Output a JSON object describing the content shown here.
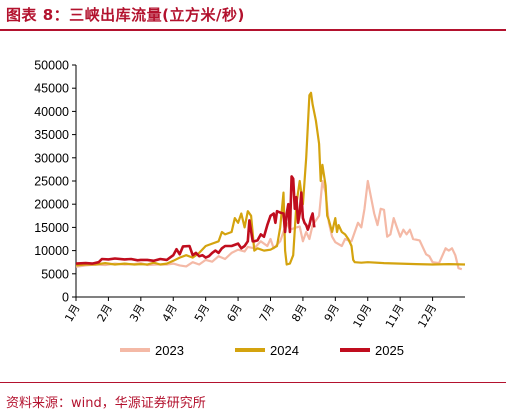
{
  "title": "图表 8：三峡出库流量(立方米/秒)",
  "source": "资料来源：wind，华源证券研究所",
  "colors": {
    "accent": "#b3122e",
    "s2023": "#f4b9a6",
    "s2024": "#d4a30e",
    "s2025": "#c00d1e"
  },
  "chart_data": {
    "type": "line",
    "title": "",
    "xlabel": "",
    "ylabel": "",
    "ylim": [
      0,
      50000
    ],
    "yticks": [
      "0",
      "5000",
      "10000",
      "15000",
      "20000",
      "25000",
      "30000",
      "35000",
      "40000",
      "45000",
      "50000"
    ],
    "xticks": [
      "1月",
      "2月",
      "3月",
      "4月",
      "5月",
      "6月",
      "7月",
      "8月",
      "9月",
      "10月",
      "11月",
      "12月"
    ],
    "grid": false,
    "legend": "bottom",
    "x_unit": "month (1.0 = 1月1日)",
    "series": [
      {
        "name": "2023",
        "points": [
          [
            1.0,
            6500
          ],
          [
            1.3,
            6800
          ],
          [
            1.6,
            7000
          ],
          [
            1.9,
            6900
          ],
          [
            2.2,
            7200
          ],
          [
            2.5,
            7000
          ],
          [
            2.8,
            7100
          ],
          [
            3.0,
            7300
          ],
          [
            3.2,
            6900
          ],
          [
            3.5,
            7000
          ],
          [
            3.8,
            7000
          ],
          [
            4.0,
            7200
          ],
          [
            4.2,
            6800
          ],
          [
            4.4,
            6600
          ],
          [
            4.6,
            7500
          ],
          [
            4.8,
            7000
          ],
          [
            5.0,
            8000
          ],
          [
            5.2,
            7600
          ],
          [
            5.4,
            8800
          ],
          [
            5.6,
            8200
          ],
          [
            5.8,
            9500
          ],
          [
            6.0,
            10200
          ],
          [
            6.2,
            9800
          ],
          [
            6.3,
            10800
          ],
          [
            6.5,
            10500
          ],
          [
            6.7,
            12000
          ],
          [
            6.9,
            11000
          ],
          [
            7.0,
            12500
          ],
          [
            7.1,
            10500
          ],
          [
            7.3,
            12000
          ],
          [
            7.5,
            16000
          ],
          [
            7.6,
            14500
          ],
          [
            7.8,
            15000
          ],
          [
            7.9,
            15200
          ],
          [
            8.0,
            12000
          ],
          [
            8.1,
            14000
          ],
          [
            8.2,
            12500
          ],
          [
            8.3,
            15500
          ],
          [
            8.5,
            17500
          ],
          [
            8.6,
            25000
          ],
          [
            8.7,
            22500
          ],
          [
            8.8,
            16000
          ],
          [
            8.9,
            13000
          ],
          [
            9.0,
            11800
          ],
          [
            9.2,
            11000
          ],
          [
            9.3,
            12500
          ],
          [
            9.4,
            12200
          ],
          [
            9.5,
            12000
          ],
          [
            9.7,
            16000
          ],
          [
            9.8,
            15000
          ],
          [
            9.9,
            19000
          ],
          [
            10.0,
            25000
          ],
          [
            10.1,
            21500
          ],
          [
            10.2,
            18000
          ],
          [
            10.3,
            15500
          ],
          [
            10.4,
            19000
          ],
          [
            10.5,
            18800
          ],
          [
            10.6,
            13000
          ],
          [
            10.7,
            13500
          ],
          [
            10.8,
            17000
          ],
          [
            10.9,
            15000
          ],
          [
            11.0,
            13000
          ],
          [
            11.1,
            14500
          ],
          [
            11.2,
            13500
          ],
          [
            11.3,
            14500
          ],
          [
            11.4,
            12500
          ],
          [
            11.6,
            12200
          ],
          [
            11.8,
            9200
          ],
          [
            11.9,
            8800
          ],
          [
            12.0,
            7500
          ],
          [
            12.2,
            7300
          ],
          [
            12.4,
            10500
          ],
          [
            12.5,
            10000
          ],
          [
            12.6,
            10500
          ],
          [
            12.7,
            9000
          ],
          [
            12.8,
            6200
          ],
          [
            12.9,
            6000
          ]
        ]
      },
      {
        "name": "2024",
        "points": [
          [
            1.0,
            6800
          ],
          [
            1.3,
            7000
          ],
          [
            1.6,
            7000
          ],
          [
            1.9,
            7300
          ],
          [
            2.2,
            7000
          ],
          [
            2.5,
            7200
          ],
          [
            2.8,
            7000
          ],
          [
            3.0,
            7100
          ],
          [
            3.2,
            7000
          ],
          [
            3.4,
            7400
          ],
          [
            3.6,
            7000
          ],
          [
            3.8,
            7200
          ],
          [
            4.0,
            7800
          ],
          [
            4.2,
            8500
          ],
          [
            4.4,
            9000
          ],
          [
            4.6,
            8500
          ],
          [
            4.8,
            9500
          ],
          [
            5.0,
            11000
          ],
          [
            5.2,
            11500
          ],
          [
            5.4,
            12000
          ],
          [
            5.5,
            14000
          ],
          [
            5.6,
            13500
          ],
          [
            5.8,
            14000
          ],
          [
            5.9,
            17000
          ],
          [
            6.0,
            16000
          ],
          [
            6.1,
            18000
          ],
          [
            6.2,
            15000
          ],
          [
            6.3,
            18500
          ],
          [
            6.4,
            17500
          ],
          [
            6.5,
            10000
          ],
          [
            6.6,
            10500
          ],
          [
            6.8,
            10000
          ],
          [
            7.0,
            10200
          ],
          [
            7.2,
            11000
          ],
          [
            7.3,
            15000
          ],
          [
            7.4,
            22500
          ],
          [
            7.45,
            10000
          ],
          [
            7.5,
            7000
          ],
          [
            7.6,
            7200
          ],
          [
            7.7,
            9000
          ],
          [
            7.8,
            20000
          ],
          [
            7.9,
            25000
          ],
          [
            8.0,
            20000
          ],
          [
            8.1,
            30000
          ],
          [
            8.2,
            43500
          ],
          [
            8.25,
            44000
          ],
          [
            8.3,
            41500
          ],
          [
            8.4,
            38000
          ],
          [
            8.5,
            33000
          ],
          [
            8.55,
            25000
          ],
          [
            8.6,
            28500
          ],
          [
            8.7,
            24000
          ],
          [
            8.75,
            17500
          ],
          [
            8.8,
            16500
          ],
          [
            8.9,
            14000
          ],
          [
            9.0,
            17000
          ],
          [
            9.05,
            14000
          ],
          [
            9.1,
            15500
          ],
          [
            9.2,
            14000
          ],
          [
            9.3,
            13500
          ],
          [
            9.4,
            12500
          ],
          [
            9.5,
            11000
          ],
          [
            9.55,
            8000
          ],
          [
            9.6,
            7500
          ],
          [
            9.8,
            7400
          ],
          [
            10.0,
            7500
          ],
          [
            10.5,
            7300
          ],
          [
            11.0,
            7200
          ],
          [
            11.5,
            7100
          ],
          [
            12.0,
            7000
          ],
          [
            12.5,
            7100
          ],
          [
            13.0,
            7000
          ]
        ]
      },
      {
        "name": "2025",
        "points": [
          [
            1.0,
            7200
          ],
          [
            1.3,
            7300
          ],
          [
            1.5,
            7200
          ],
          [
            1.7,
            7500
          ],
          [
            1.8,
            8200
          ],
          [
            2.0,
            8100
          ],
          [
            2.2,
            8300
          ],
          [
            2.5,
            8100
          ],
          [
            2.7,
            8200
          ],
          [
            2.9,
            7900
          ],
          [
            3.0,
            8000
          ],
          [
            3.2,
            8000
          ],
          [
            3.4,
            7800
          ],
          [
            3.6,
            8200
          ],
          [
            3.8,
            8000
          ],
          [
            3.9,
            8500
          ],
          [
            4.0,
            9000
          ],
          [
            4.1,
            10300
          ],
          [
            4.2,
            9200
          ],
          [
            4.3,
            10900
          ],
          [
            4.5,
            11000
          ],
          [
            4.6,
            9000
          ],
          [
            4.7,
            9500
          ],
          [
            4.8,
            8800
          ],
          [
            4.9,
            9000
          ],
          [
            5.0,
            8500
          ],
          [
            5.1,
            8800
          ],
          [
            5.2,
            9500
          ],
          [
            5.3,
            10000
          ],
          [
            5.4,
            9500
          ],
          [
            5.5,
            10500
          ],
          [
            5.6,
            11000
          ],
          [
            5.8,
            11000
          ],
          [
            6.0,
            11500
          ],
          [
            6.1,
            10500
          ],
          [
            6.2,
            11000
          ],
          [
            6.3,
            12000
          ],
          [
            6.35,
            16500
          ],
          [
            6.45,
            12000
          ],
          [
            6.5,
            12000
          ],
          [
            6.6,
            12200
          ],
          [
            6.7,
            13500
          ],
          [
            6.8,
            13000
          ],
          [
            6.9,
            15500
          ],
          [
            7.0,
            17500
          ],
          [
            7.1,
            18000
          ],
          [
            7.15,
            16000
          ],
          [
            7.2,
            18500
          ],
          [
            7.3,
            18200
          ],
          [
            7.4,
            18000
          ],
          [
            7.45,
            14000
          ],
          [
            7.5,
            18000
          ],
          [
            7.55,
            20000
          ],
          [
            7.6,
            14000
          ],
          [
            7.65,
            26000
          ],
          [
            7.7,
            25500
          ],
          [
            7.75,
            19000
          ],
          [
            7.8,
            21500
          ],
          [
            7.85,
            16000
          ],
          [
            7.9,
            18000
          ],
          [
            7.95,
            22500
          ],
          [
            8.0,
            17000
          ],
          [
            8.05,
            16000
          ],
          [
            8.1,
            15500
          ],
          [
            8.15,
            14500
          ],
          [
            8.2,
            15500
          ],
          [
            8.25,
            17000
          ],
          [
            8.3,
            18000
          ],
          [
            8.35,
            15000
          ]
        ]
      }
    ]
  }
}
